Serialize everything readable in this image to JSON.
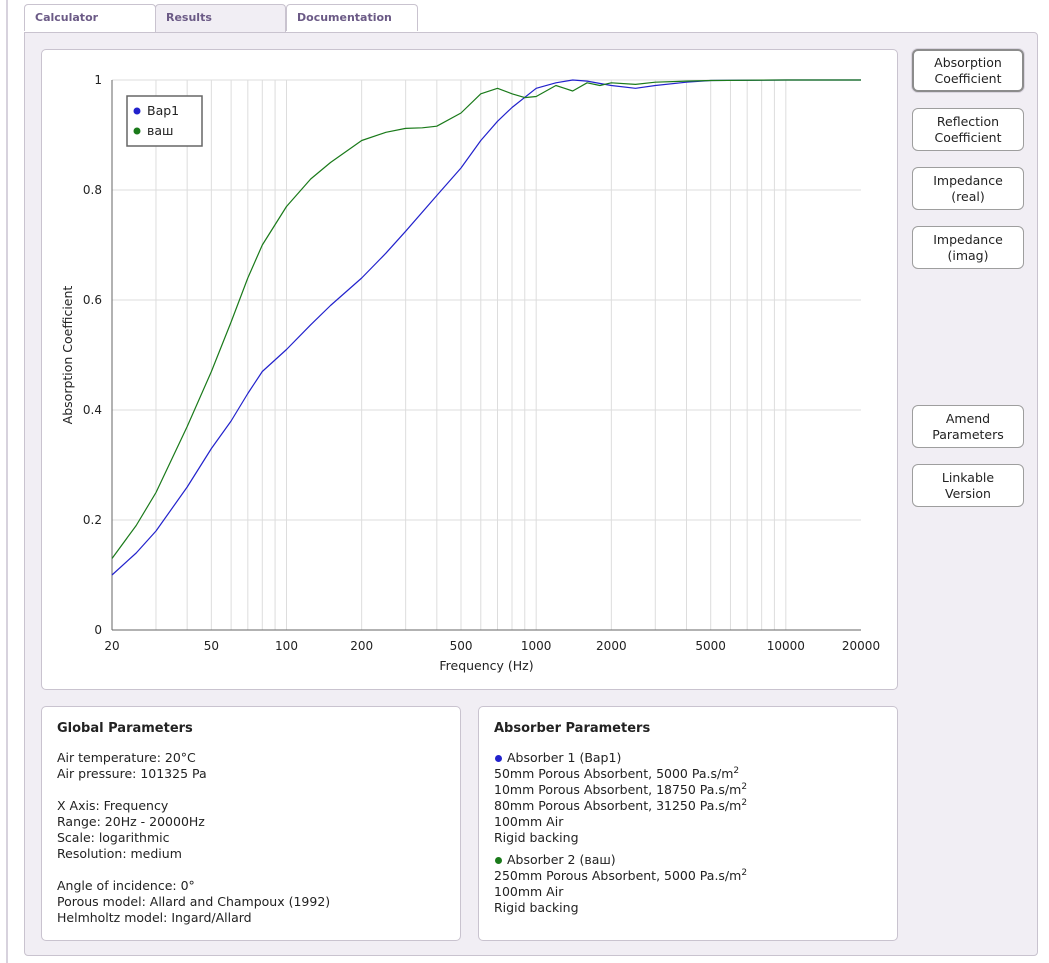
{
  "tabs": [
    {
      "label": "Calculator",
      "active": false
    },
    {
      "label": "Results",
      "active": true
    },
    {
      "label": "Documentation",
      "active": false
    }
  ],
  "side_buttons": [
    {
      "line1": "Absorption",
      "line2": "Coefficient",
      "active": true
    },
    {
      "line1": "Reflection",
      "line2": "Coefficient",
      "active": false
    },
    {
      "line1": "Impedance",
      "line2": "(real)",
      "active": false
    },
    {
      "line1": "Impedance",
      "line2": "(imag)",
      "active": false
    },
    {
      "line1": "Amend",
      "line2": "Parameters",
      "active": false
    },
    {
      "line1": "Linkable",
      "line2": "Version",
      "active": false
    }
  ],
  "global_params": {
    "title": "Global Parameters",
    "air_temperature": "Air temperature: 20°C",
    "air_pressure": "Air pressure: 101325 Pa",
    "x_axis": "X Axis: Frequency",
    "range": "Range: 20Hz - 20000Hz",
    "scale": "Scale: logarithmic",
    "resolution": "Resolution: medium",
    "angle": "Angle of incidence: 0°",
    "porous_model": "Porous model: Allard and Champoux (1992)",
    "helmholtz_model": "Helmholtz model: Ingard/Allard"
  },
  "absorber_params": {
    "title": "Absorber Parameters",
    "absorbers": [
      {
        "heading": "Absorber 1 (Вар1)",
        "color": "#2222cc",
        "layers": [
          {
            "text": "50mm Porous Absorbent, 5000 Pa.s/m",
            "sup": "2"
          },
          {
            "text": "10mm Porous Absorbent, 18750 Pa.s/m",
            "sup": "2"
          },
          {
            "text": "80mm Porous Absorbent, 31250 Pa.s/m",
            "sup": "2"
          },
          {
            "text": "100mm Air",
            "sup": ""
          },
          {
            "text": "Rigid backing",
            "sup": ""
          }
        ]
      },
      {
        "heading": "Absorber 2 (ваш)",
        "color": "#1a7a1a",
        "layers": [
          {
            "text": "250mm Porous Absorbent, 5000 Pa.s/m",
            "sup": "2"
          },
          {
            "text": "100mm Air",
            "sup": ""
          },
          {
            "text": "Rigid backing",
            "sup": ""
          }
        ]
      }
    ]
  },
  "chart_data": {
    "type": "line",
    "xlabel": "Frequency (Hz)",
    "ylabel": "Absorption Coefficient",
    "x_scale": "log",
    "xlim": [
      20,
      20000
    ],
    "ylim": [
      0,
      1
    ],
    "grid": true,
    "legend_position": "top-left",
    "x_tick_labels": [
      "20",
      "50",
      "100",
      "200",
      "500",
      "1000",
      "2000",
      "5000",
      "10000",
      "20000"
    ],
    "y_tick_labels": [
      "0",
      "0.2",
      "0.4",
      "0.6",
      "0.8",
      "1"
    ],
    "series": [
      {
        "name": "Вар1",
        "color": "#2222cc",
        "x": [
          20,
          25,
          30,
          40,
          50,
          60,
          70,
          80,
          100,
          125,
          150,
          200,
          250,
          300,
          400,
          500,
          600,
          700,
          800,
          1000,
          1200,
          1400,
          1600,
          2000,
          2500,
          3000,
          4000,
          5000,
          10000,
          20000
        ],
        "y": [
          0.1,
          0.14,
          0.18,
          0.26,
          0.33,
          0.38,
          0.43,
          0.47,
          0.51,
          0.555,
          0.59,
          0.64,
          0.685,
          0.725,
          0.79,
          0.84,
          0.89,
          0.925,
          0.95,
          0.985,
          0.995,
          1.0,
          0.998,
          0.99,
          0.985,
          0.99,
          0.996,
          0.999,
          1.0,
          1.0
        ]
      },
      {
        "name": "ваш",
        "color": "#1a7a1a",
        "x": [
          20,
          25,
          30,
          40,
          50,
          60,
          70,
          80,
          100,
          125,
          150,
          200,
          250,
          300,
          350,
          400,
          500,
          600,
          700,
          800,
          900,
          1000,
          1200,
          1300,
          1400,
          1600,
          1800,
          2000,
          2500,
          3000,
          4000,
          5000,
          10000,
          20000
        ],
        "y": [
          0.13,
          0.19,
          0.25,
          0.37,
          0.47,
          0.56,
          0.64,
          0.7,
          0.77,
          0.82,
          0.85,
          0.89,
          0.905,
          0.912,
          0.913,
          0.916,
          0.94,
          0.975,
          0.985,
          0.975,
          0.968,
          0.97,
          0.99,
          0.985,
          0.98,
          0.995,
          0.99,
          0.995,
          0.992,
          0.996,
          0.998,
          0.999,
          1.0,
          1.0
        ]
      }
    ]
  }
}
